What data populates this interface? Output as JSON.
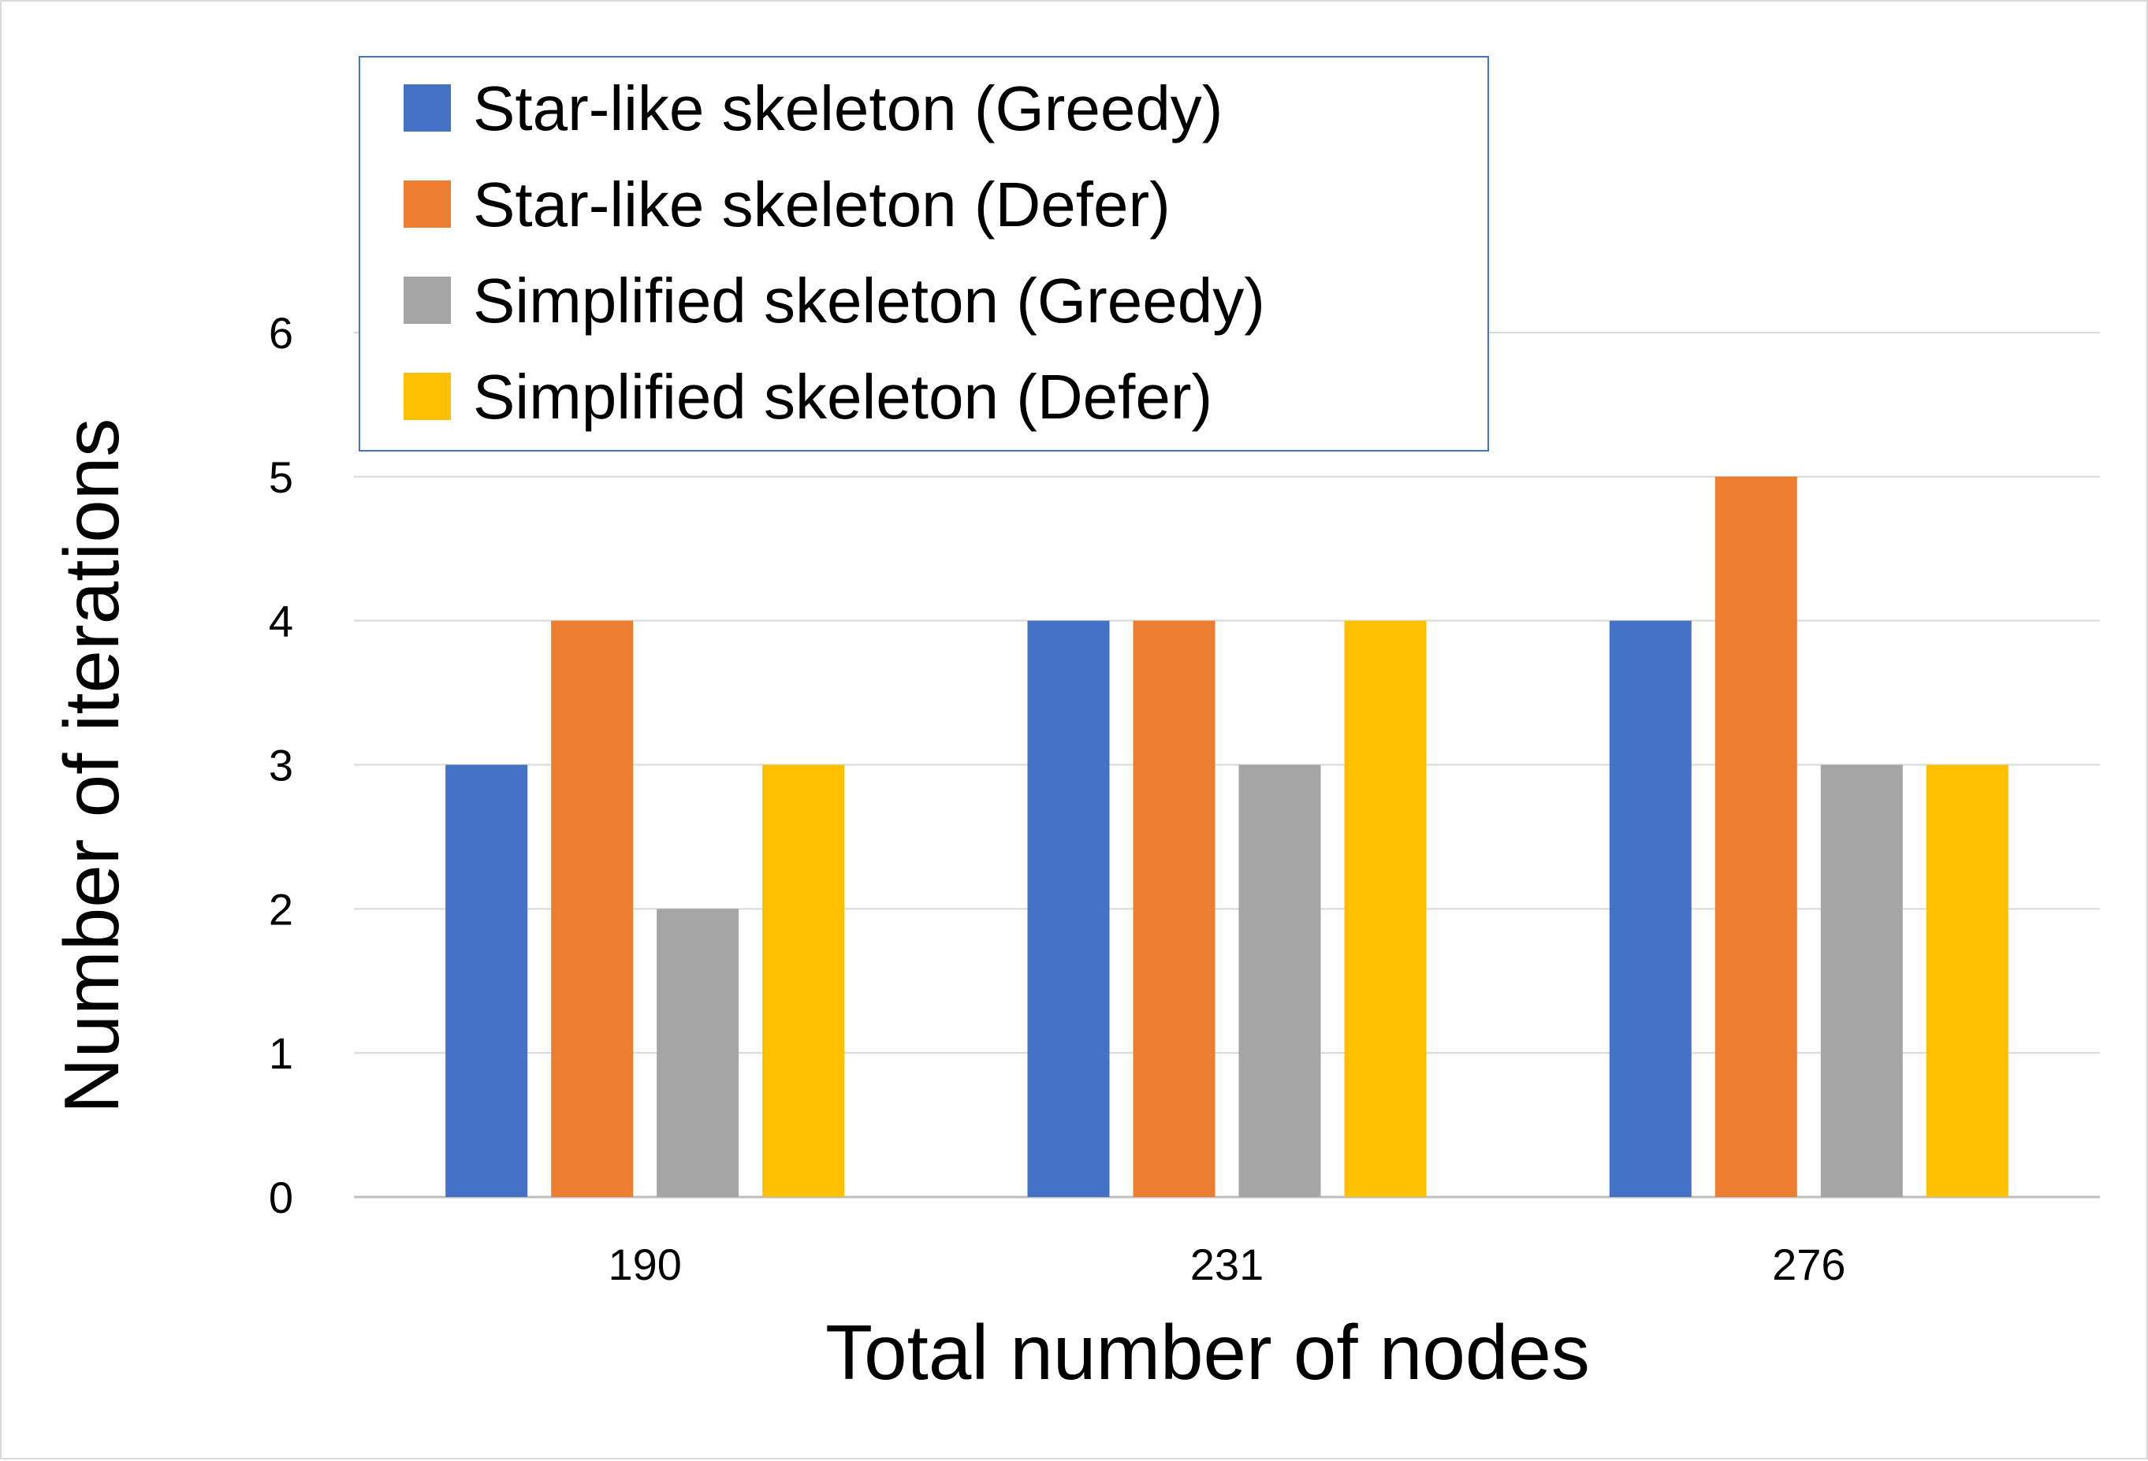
{
  "chart_data": {
    "type": "bar",
    "title": "",
    "xlabel": "Total number of nodes",
    "ylabel": "Number of iterations",
    "categories": [
      "190",
      "231",
      "276"
    ],
    "ylim": [
      0,
      6
    ],
    "yticks": [
      "0",
      "1",
      "2",
      "3",
      "4",
      "5",
      "6"
    ],
    "grid": true,
    "legend_position": "top-left",
    "series": [
      {
        "name": "Star-like skeleton (Greedy)",
        "color": "#4472C4",
        "values": [
          3,
          4,
          4
        ]
      },
      {
        "name": "Star-like skeleton (Defer)",
        "color": "#ED7D31",
        "values": [
          4,
          4,
          5
        ]
      },
      {
        "name": "Simplified skeleton (Greedy)",
        "color": "#A5A5A5",
        "values": [
          2,
          3,
          3
        ]
      },
      {
        "name": "Simplified skeleton (Defer)",
        "color": "#FFC000",
        "values": [
          3,
          4,
          3
        ]
      }
    ]
  }
}
